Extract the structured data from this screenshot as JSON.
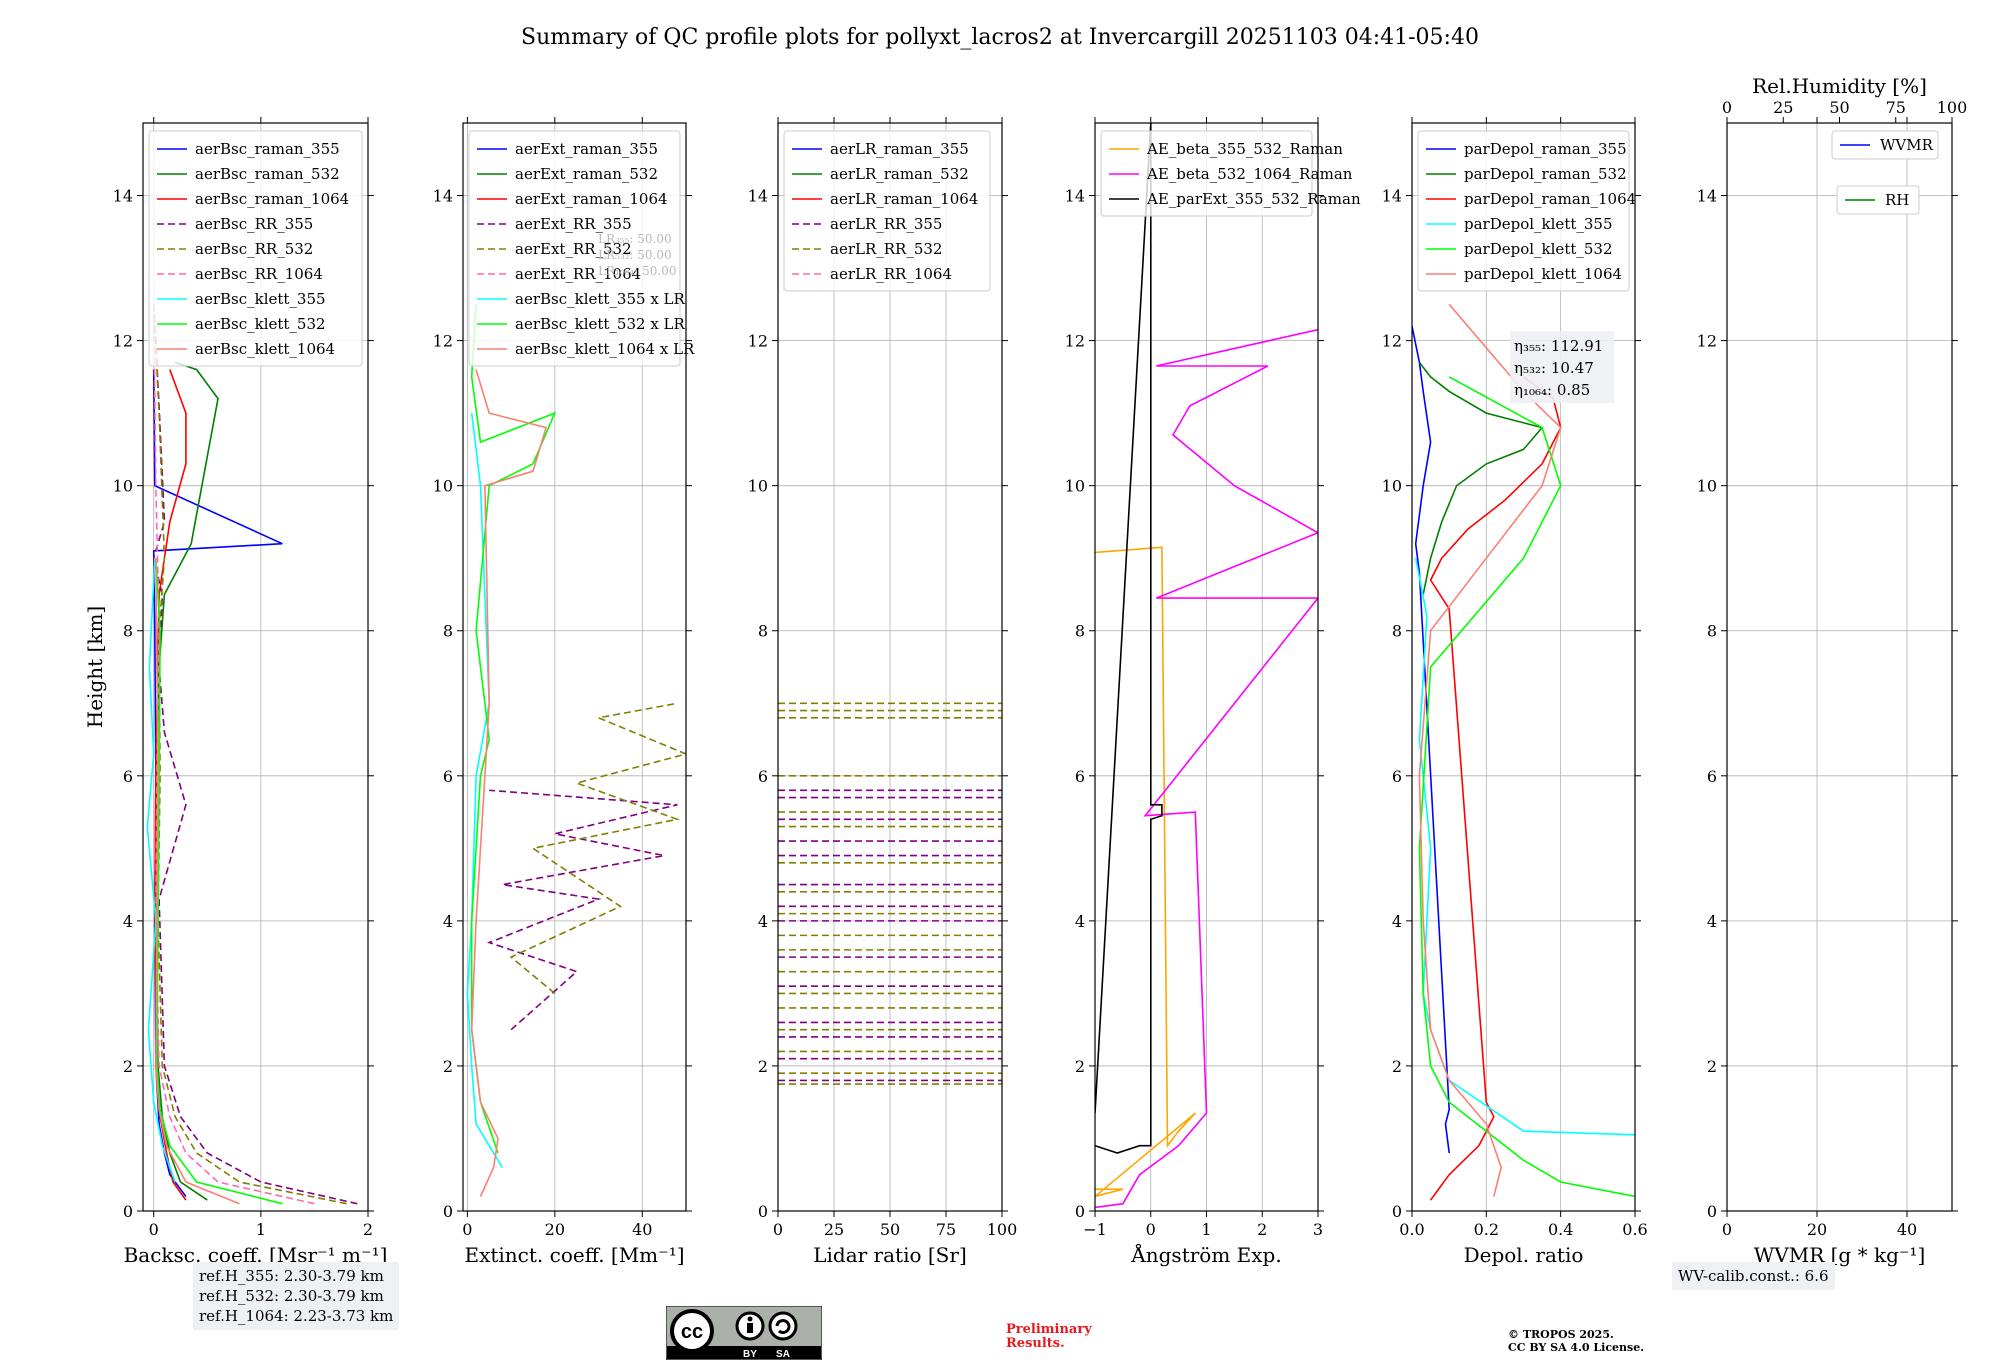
{
  "title": "Summary of QC profile plots for pollyxt_lacros2 at Invercargill 20251103 04:41-05:40",
  "chart_data": [
    {
      "id": "backscatter",
      "type": "line",
      "xlabel": "Backsc. coeff. [Msr⁻¹ m⁻¹]",
      "ylabel": "Height [km]",
      "xlim": [
        -0.1,
        2
      ],
      "ylim": [
        0,
        15
      ],
      "xticks": [
        0,
        1,
        2
      ],
      "yticks": [
        0,
        2,
        4,
        6,
        8,
        10,
        12,
        14
      ],
      "series": [
        {
          "name": "aerBsc_raman_355",
          "color": "#0000ff",
          "style": "solid",
          "x": [
            0.3,
            0.15,
            0.1,
            0.05,
            0.02,
            0.01,
            0.02,
            0.01,
            0.0,
            1.2,
            0.01,
            0.0
          ],
          "y": [
            0.2,
            0.5,
            0.8,
            1.2,
            2,
            4,
            6,
            8,
            9.1,
            9.2,
            10,
            11.6
          ]
        },
        {
          "name": "aerBsc_raman_532",
          "color": "#008000",
          "style": "solid",
          "x": [
            0.5,
            0.25,
            0.15,
            0.08,
            0.04,
            0.02,
            0.03,
            0.05,
            0.1,
            0.35,
            0.45,
            0.6,
            0.4,
            0.2
          ],
          "y": [
            0.15,
            0.4,
            0.8,
            1.3,
            2,
            4,
            6,
            7.5,
            8.5,
            9.2,
            10,
            11.2,
            11.6,
            11.7
          ]
        },
        {
          "name": "aerBsc_raman_1064",
          "color": "#ff0000",
          "style": "solid",
          "x": [
            0.3,
            0.18,
            0.12,
            0.06,
            0.03,
            0.01,
            0.02,
            0.05,
            0.15,
            0.3,
            0.3,
            0.15
          ],
          "y": [
            0.15,
            0.4,
            0.8,
            1.3,
            2,
            4,
            6,
            8.5,
            9.5,
            10.3,
            11,
            11.6
          ]
        },
        {
          "name": "aerBsc_RR_355",
          "color": "#800080",
          "style": "dashed",
          "x": [
            1.9,
            1.0,
            0.5,
            0.25,
            0.1,
            0.05,
            0.3,
            0.1,
            0.05,
            0.08,
            0.0,
            0.1,
            0.05,
            0.0
          ],
          "y": [
            0.1,
            0.4,
            0.8,
            1.3,
            2,
            4.3,
            5.6,
            6.6,
            7.5,
            8.5,
            9.0,
            9.5,
            11.1,
            12.5
          ]
        },
        {
          "name": "aerBsc_RR_532",
          "color": "#808000",
          "style": "dashed",
          "x": [
            1.8,
            0.8,
            0.4,
            0.2,
            0.08,
            0.04,
            0.06,
            0.05,
            0.1,
            0.05,
            0.0
          ],
          "y": [
            0.1,
            0.4,
            0.8,
            1.3,
            2,
            4,
            6,
            8,
            9,
            11,
            12.5
          ]
        },
        {
          "name": "aerBsc_RR_1064",
          "color": "#ff69b4",
          "style": "dashed",
          "x": [
            1.5,
            0.6,
            0.3,
            0.15,
            0.05,
            0.02,
            0.03,
            0.05,
            0.02,
            0.0
          ],
          "y": [
            0.1,
            0.4,
            0.8,
            1.3,
            2,
            4,
            6,
            8,
            10,
            12.5
          ]
        },
        {
          "name": "aerBsc_klett_355",
          "color": "#00ffff",
          "style": "solid",
          "x": [
            0.2,
            0.08,
            0.0,
            -0.05,
            0.02,
            -0.06,
            0.0,
            -0.04,
            0.01
          ],
          "y": [
            0.4,
            0.9,
            1.5,
            2.5,
            4,
            5.3,
            6.3,
            7.5,
            9
          ]
        },
        {
          "name": "aerBsc_klett_532",
          "color": "#00ff00",
          "style": "solid",
          "x": [
            1.2,
            0.4,
            0.15,
            0.06,
            0.03,
            0.04,
            0.05,
            0.06,
            0.02
          ],
          "y": [
            0.1,
            0.4,
            0.9,
            1.4,
            2,
            4,
            6,
            8,
            9
          ]
        },
        {
          "name": "aerBsc_klett_1064",
          "color": "#fa8072",
          "style": "solid",
          "x": [
            0.8,
            0.3,
            0.12,
            0.05,
            0.02,
            0.03,
            0.04,
            0.02
          ],
          "y": [
            0.1,
            0.4,
            0.9,
            1.4,
            2,
            4,
            6,
            9
          ]
        }
      ],
      "legend": "top-left",
      "notes": [
        "ref.H_355: 2.30-3.79 km",
        "ref.H_532: 2.30-3.79 km",
        "ref.H_1064: 2.23-3.73 km"
      ]
    },
    {
      "id": "extinction",
      "type": "line",
      "xlabel": "Extinct. coeff. [Mm⁻¹]",
      "xlim": [
        -1,
        50
      ],
      "ylim": [
        0,
        15
      ],
      "xticks": [
        0,
        20,
        40
      ],
      "yticks": [
        0,
        2,
        4,
        6,
        8,
        10,
        12,
        14
      ],
      "series": [
        {
          "name": "aerExt_raman_355",
          "color": "#0000ff",
          "style": "solid",
          "x": [],
          "y": []
        },
        {
          "name": "aerExt_raman_532",
          "color": "#008000",
          "style": "solid",
          "x": [],
          "y": []
        },
        {
          "name": "aerExt_raman_1064",
          "color": "#ff0000",
          "style": "solid",
          "x": [],
          "y": []
        },
        {
          "name": "aerExt_RR_355",
          "color": "#800080",
          "style": "dashed",
          "x": [
            10,
            25,
            5,
            30,
            8,
            45,
            20,
            48,
            5
          ],
          "y": [
            2.5,
            3.3,
            3.7,
            4.3,
            4.5,
            4.9,
            5.2,
            5.6,
            5.8
          ]
        },
        {
          "name": "aerExt_RR_532",
          "color": "#808000",
          "style": "dashed",
          "x": [
            20,
            10,
            35,
            15,
            48,
            25,
            50,
            30,
            48
          ],
          "y": [
            3.0,
            3.5,
            4.2,
            5.0,
            5.4,
            5.9,
            6.3,
            6.8,
            7.0
          ]
        },
        {
          "name": "aerExt_RR_1064",
          "color": "#ff69b4",
          "style": "dashed",
          "x": [],
          "y": []
        },
        {
          "name": "aerBsc_klett_355 x LR",
          "color": "#00ffff",
          "style": "solid",
          "x": [
            8,
            2,
            1,
            0,
            1,
            2,
            5,
            3,
            1
          ],
          "y": [
            0.6,
            1.2,
            2,
            3,
            4,
            6,
            7,
            10,
            11
          ]
        },
        {
          "name": "aerBsc_klett_532 x LR",
          "color": "#00ff00",
          "style": "solid",
          "x": [
            7,
            3,
            1,
            1,
            2,
            3,
            5,
            4,
            2,
            5,
            15,
            20,
            3,
            1,
            2
          ],
          "y": [
            0.8,
            1.5,
            2.5,
            4,
            5,
            6,
            6.5,
            7,
            8,
            10,
            10.3,
            11,
            10.6,
            11.5,
            12.5
          ]
        },
        {
          "name": "aerBsc_klett_1064 x LR",
          "color": "#fa8072",
          "style": "solid",
          "x": [
            3,
            6,
            7,
            3,
            1,
            2,
            3,
            4,
            5,
            4,
            15,
            18,
            5,
            2
          ],
          "y": [
            0.2,
            0.6,
            1.0,
            1.5,
            2.5,
            4,
            5,
            6,
            7,
            10,
            10.2,
            10.8,
            11,
            11.6
          ]
        }
      ],
      "annotations": [
        "LR₃₅₅: 50.00",
        "LR₅₃₂: 50.00",
        "LR₁₀₆₄: 50.00"
      ],
      "legend": "top-left"
    },
    {
      "id": "lidar_ratio",
      "type": "line",
      "xlabel": "Lidar ratio [Sr]",
      "xlim": [
        0,
        100
      ],
      "ylim": [
        0,
        15
      ],
      "xticks": [
        0,
        25,
        50,
        75,
        100
      ],
      "yticks": [
        0,
        2,
        4,
        6,
        8,
        10,
        12,
        14
      ],
      "series": [
        {
          "name": "aerLR_raman_355",
          "color": "#0000ff",
          "style": "solid"
        },
        {
          "name": "aerLR_raman_532",
          "color": "#008000",
          "style": "solid"
        },
        {
          "name": "aerLR_raman_1064",
          "color": "#ff0000",
          "style": "solid"
        },
        {
          "name": "aerLR_RR_355",
          "color": "#800080",
          "style": "dashed",
          "y": [
            1.8,
            2.1,
            2.4,
            2.6,
            3.1,
            3.5,
            4.0,
            4.2,
            4.5,
            4.9,
            5.1,
            5.4,
            5.7,
            5.8
          ]
        },
        {
          "name": "aerLR_RR_532",
          "color": "#808000",
          "style": "dashed",
          "y": [
            1.75,
            1.9,
            2.2,
            2.5,
            2.8,
            3.0,
            3.3,
            3.6,
            3.8,
            4.1,
            4.4,
            4.8,
            5.3,
            5.5,
            6.0,
            6.8,
            6.9,
            7.0
          ]
        },
        {
          "name": "aerLR_RR_1064",
          "color": "#ff69b4",
          "style": "dashed"
        }
      ],
      "legend": "top-left"
    },
    {
      "id": "angstrom",
      "type": "line",
      "xlabel": "Ångström Exp.",
      "xlim": [
        -1,
        3
      ],
      "ylim": [
        0,
        15
      ],
      "xticks": [
        -1,
        0,
        1,
        2,
        3
      ],
      "yticks": [
        0,
        2,
        4,
        6,
        8,
        10,
        12,
        14
      ],
      "series": [
        {
          "name": "AE_beta_355_532_Raman",
          "color": "#ffa500",
          "style": "solid",
          "x": [
            -1,
            0.2,
            0.3,
            0.5,
            0.8,
            -1,
            -0.5,
            -1
          ],
          "y": [
            9.08,
            9.15,
            0.9,
            1.1,
            1.35,
            0.2,
            0.3,
            0.3
          ]
        },
        {
          "name": "AE_beta_532_1064_Raman",
          "color": "#ff00ff",
          "style": "solid",
          "x": [
            -1,
            -0.5,
            -0.2,
            0.5,
            1,
            0.8,
            -0.1,
            3,
            0.1,
            3,
            1.5,
            0.4,
            0.7,
            2.1,
            0.1,
            3
          ],
          "y": [
            0.05,
            0.1,
            0.5,
            0.9,
            1.35,
            5.5,
            5.45,
            8.45,
            8.45,
            9.35,
            10.0,
            10.7,
            11.1,
            11.65,
            11.65,
            12.15
          ]
        },
        {
          "name": "AE_parExt_355_532_Raman",
          "color": "#000000",
          "style": "solid",
          "x": [
            -1,
            -0.6,
            -0.2,
            0,
            0,
            0.2,
            0.2,
            0,
            0,
            -1
          ],
          "y": [
            0.9,
            0.8,
            0.9,
            0.9,
            5.4,
            5.45,
            5.6,
            5.6,
            15,
            1.35
          ]
        }
      ],
      "legend": "top-left"
    },
    {
      "id": "depol",
      "type": "line",
      "xlabel": "Depol. ratio",
      "xlim": [
        0,
        0.6
      ],
      "ylim": [
        0,
        15
      ],
      "xticks": [
        0.0,
        0.2,
        0.4,
        0.6
      ],
      "xtick_labels": [
        "0.0",
        "0.2",
        "0.4",
        "0.6"
      ],
      "yticks": [
        0,
        2,
        4,
        6,
        8,
        10,
        12,
        14
      ],
      "series": [
        {
          "name": "parDepol_raman_355",
          "color": "#0000ff",
          "style": "solid",
          "x": [
            0.1,
            0.09,
            0.1,
            0.02,
            0.01,
            0.03,
            0.05,
            0.03,
            0.02,
            0.0
          ],
          "y": [
            0.8,
            1.2,
            1.4,
            8.8,
            9.2,
            10,
            10.6,
            11.3,
            11.7,
            12.2
          ]
        },
        {
          "name": "parDepol_raman_532",
          "color": "#008000",
          "style": "solid",
          "x": [
            0.03,
            0.05,
            0.08,
            0.12,
            0.2,
            0.3,
            0.35,
            0.2,
            0.1,
            0.05,
            0.02
          ],
          "y": [
            8.5,
            9.0,
            9.5,
            10,
            10.3,
            10.5,
            10.8,
            11.0,
            11.3,
            11.5,
            11.7
          ]
        },
        {
          "name": "parDepol_raman_1064",
          "color": "#ff0000",
          "style": "solid",
          "x": [
            0.05,
            0.1,
            0.18,
            0.22,
            0.2,
            0.1,
            0.05,
            0.08,
            0.15,
            0.25,
            0.35,
            0.4,
            0.38,
            0.3
          ],
          "y": [
            0.15,
            0.5,
            0.9,
            1.3,
            1.5,
            8.3,
            8.7,
            9.0,
            9.4,
            9.8,
            10.3,
            10.8,
            11.2,
            11.5
          ]
        },
        {
          "name": "parDepol_klett_355",
          "color": "#00ffff",
          "style": "solid",
          "x": [
            0.6,
            0.3,
            0.1,
            0.05,
            0.03,
            0.05,
            0.02,
            0.04,
            0.01
          ],
          "y": [
            1.05,
            1.1,
            1.8,
            2.5,
            3,
            5,
            6.5,
            8.2,
            9
          ]
        },
        {
          "name": "parDepol_klett_532",
          "color": "#00ff00",
          "style": "solid",
          "x": [
            0.6,
            0.4,
            0.3,
            0.2,
            0.1,
            0.05,
            0.03,
            0.02,
            0.05,
            0.3,
            0.4,
            0.35,
            0.1
          ],
          "y": [
            0.2,
            0.4,
            0.7,
            1.1,
            1.5,
            2,
            3,
            5,
            7.5,
            9,
            10,
            10.8,
            11.5
          ]
        },
        {
          "name": "parDepol_klett_1064",
          "color": "#fa8072",
          "style": "solid",
          "x": [
            0.22,
            0.24,
            0.2,
            0.1,
            0.05,
            0.03,
            0.02,
            0.05,
            0.2,
            0.35,
            0.4,
            0.3,
            0.1
          ],
          "y": [
            0.2,
            0.6,
            1.2,
            1.8,
            2.5,
            4,
            6,
            8,
            9,
            10,
            10.8,
            11.3,
            12.5
          ]
        }
      ],
      "annotations": [
        "η₃₅₅: 112.91",
        "η₅₃₂: 10.47",
        "η₁₀₆₄: 0.85"
      ],
      "legend": "top-left"
    },
    {
      "id": "wvmr",
      "type": "line",
      "xlabel": "WVMR [g * kg⁻¹]",
      "x2label": "Rel.Humidity [%]",
      "xlim": [
        0,
        50
      ],
      "x2lim": [
        0,
        100
      ],
      "ylim": [
        0,
        15
      ],
      "xticks": [
        0,
        20,
        40
      ],
      "x2ticks": [
        0,
        25,
        50,
        75,
        100
      ],
      "yticks": [
        0,
        2,
        4,
        6,
        8,
        10,
        12,
        14
      ],
      "series": [
        {
          "name": "WVMR",
          "color": "#0000ff",
          "style": "solid",
          "x": [],
          "y": []
        },
        {
          "name": "RH",
          "color": "#008000",
          "style": "solid",
          "x": [],
          "y": []
        }
      ],
      "notes": [
        "WV-calib.const.: 6.6"
      ]
    }
  ],
  "footer": {
    "preliminary": [
      "Preliminary",
      "Results."
    ],
    "copyright": [
      "© TROPOS 2025.",
      "CC BY SA 4.0 License."
    ],
    "cc_labels": [
      "BY",
      "SA"
    ]
  }
}
